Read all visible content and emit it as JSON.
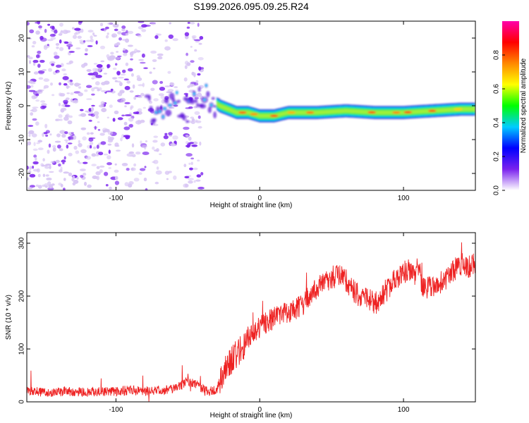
{
  "title": "S199.2026.095.09.25.R24",
  "colors": {
    "background": "#ffffff",
    "axis": "#000000",
    "snr_line": "#ee2222",
    "noise_purple": "#7a22ee",
    "noise_lavender": "#d8c6f4"
  },
  "chart_data": [
    {
      "type": "heatmap",
      "name": "spectrogram",
      "xlabel": "Height of straight line (km)",
      "ylabel": "Frequency (Hz)",
      "xlim": [
        -162,
        150
      ],
      "ylim": [
        -25,
        25
      ],
      "xticks": [
        -100,
        0,
        100
      ],
      "yticks": [
        -20,
        -10,
        0,
        10,
        20
      ],
      "xtick_labels": [
        "-100",
        "0",
        "100"
      ],
      "ytick_labels": [
        "-20",
        "-10",
        "0",
        "10",
        "20"
      ],
      "description_series": {
        "name": "signal ridge center frequency (Hz)",
        "x": [
          -76,
          -68,
          -60,
          -52,
          -44,
          -38,
          -34,
          -28,
          -22,
          -16,
          -8,
          0,
          10,
          20,
          40,
          60,
          80,
          100,
          120,
          140,
          150
        ],
        "y": [
          -3,
          -1,
          1,
          -2,
          1,
          3,
          2,
          0,
          -1,
          -2,
          -2,
          -3,
          -3,
          -2,
          -2,
          -1.5,
          -2,
          -2,
          -1.5,
          -1,
          -1
        ]
      },
      "colorbar": {
        "label": "Normalized spectral amplitude",
        "range": [
          0.0,
          1.0
        ],
        "ticks": [
          0.0,
          0.2,
          0.4,
          0.6,
          0.8
        ],
        "tick_labels": [
          "0.0",
          "0.2",
          "0.4",
          "0.6",
          "0.8"
        ],
        "stops": [
          "#ffffff",
          "#7a22ee",
          "#0000ff",
          "#00ccff",
          "#00ff00",
          "#ffff00",
          "#ff8800",
          "#ff0000",
          "#ff00aa"
        ]
      }
    },
    {
      "type": "line",
      "name": "snr",
      "xlabel": "Height of straight line (km)",
      "ylabel": "SNR (10 * v/v)",
      "xlim": [
        -162,
        150
      ],
      "ylim": [
        0,
        320
      ],
      "xticks": [
        -100,
        0,
        100
      ],
      "yticks": [
        0,
        100,
        200,
        300
      ],
      "xtick_labels": [
        "-100",
        "0",
        "100"
      ],
      "ytick_labels": [
        "0",
        "100",
        "200",
        "300"
      ],
      "series": [
        {
          "name": "SNR",
          "x": [
            -162,
            -150,
            -140,
            -130,
            -120,
            -110,
            -100,
            -90,
            -80,
            -70,
            -60,
            -55,
            -50,
            -45,
            -40,
            -35,
            -30,
            -28,
            -25,
            -20,
            -15,
            -10,
            -5,
            0,
            5,
            10,
            15,
            20,
            25,
            30,
            35,
            40,
            45,
            50,
            55,
            60,
            65,
            70,
            75,
            80,
            85,
            90,
            95,
            100,
            105,
            108,
            110,
            113,
            118,
            125,
            130,
            135,
            140,
            145,
            150
          ],
          "y": [
            20,
            18,
            19,
            20,
            18,
            19,
            20,
            22,
            20,
            22,
            25,
            30,
            40,
            35,
            25,
            20,
            22,
            40,
            60,
            75,
            95,
            110,
            125,
            140,
            150,
            160,
            165,
            170,
            175,
            185,
            200,
            215,
            225,
            235,
            240,
            230,
            210,
            200,
            195,
            185,
            200,
            215,
            235,
            245,
            250,
            240,
            260,
            220,
            215,
            225,
            235,
            250,
            260,
            255,
            262
          ]
        }
      ]
    }
  ]
}
